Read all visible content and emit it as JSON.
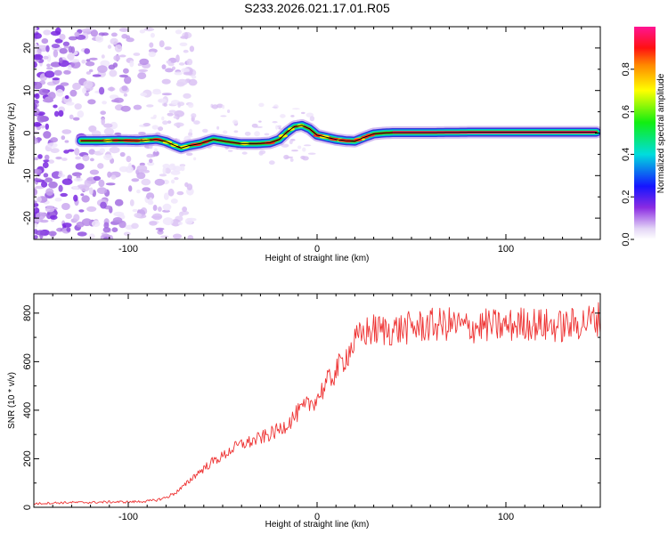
{
  "title": "S233.2026.021.17.01.R05",
  "chart_data": [
    {
      "type": "heatmap",
      "name": "spectrogram",
      "xlabel": "Height of straight line (km)",
      "ylabel": "Frequency (Hz)",
      "xlim": [
        -150,
        150
      ],
      "ylim": [
        -25,
        25
      ],
      "xticks": [
        -100,
        0,
        100
      ],
      "xtick_labels": [
        "-100",
        "0",
        "100"
      ],
      "yticks": [
        -20,
        -10,
        0,
        10,
        20
      ],
      "ytick_labels": [
        "-20",
        "-10",
        "0",
        "10",
        "20"
      ],
      "ridge_line": {
        "x": [
          -125,
          -115,
          -105,
          -95,
          -85,
          -80,
          -75,
          -72,
          -68,
          -62,
          -55,
          -48,
          -40,
          -32,
          -25,
          -20,
          -16,
          -12,
          -8,
          -4,
          0,
          5,
          10,
          15,
          20,
          25,
          30,
          35,
          40,
          60,
          80,
          100,
          120,
          140,
          148
        ],
        "y": [
          -1.8,
          -1.8,
          -1.7,
          -1.8,
          -1.5,
          -2.0,
          -3.0,
          -3.5,
          -3.0,
          -2.5,
          -1.5,
          -2.0,
          -2.5,
          -2.5,
          -2.3,
          -1.5,
          0.2,
          1.5,
          1.8,
          1.0,
          -0.5,
          -1.0,
          -1.5,
          -1.8,
          -1.9,
          -1.0,
          -0.2,
          0.0,
          0.1,
          0.1,
          0.2,
          0.2,
          0.2,
          0.2,
          0.2
        ]
      },
      "colorbar": {
        "label": "Normalized spectral amplitude",
        "range": [
          0.0,
          1.0
        ],
        "ticks": [
          0.0,
          0.2,
          0.4,
          0.6,
          0.8
        ],
        "tick_labels": [
          "0.0",
          "0.2",
          "0.4",
          "0.6",
          "0.8"
        ]
      }
    },
    {
      "type": "line",
      "name": "snr",
      "xlabel": "Height of straight line (km)",
      "ylabel": "SNR (10 * v/v)",
      "xlim": [
        -150,
        150
      ],
      "ylim": [
        0,
        880
      ],
      "xticks": [
        -100,
        0,
        100
      ],
      "xtick_labels": [
        "-100",
        "0",
        "100"
      ],
      "yticks": [
        0,
        200,
        400,
        600,
        800
      ],
      "ytick_labels": [
        "0",
        "200",
        "400",
        "600",
        "800"
      ],
      "series": [
        {
          "name": "SNR",
          "color": "#ee3333",
          "x": [
            -150,
            -140,
            -130,
            -120,
            -110,
            -100,
            -90,
            -85,
            -80,
            -75,
            -70,
            -65,
            -60,
            -55,
            -50,
            -45,
            -40,
            -35,
            -30,
            -25,
            -20,
            -15,
            -10,
            -5,
            0,
            5,
            10,
            15,
            20,
            25,
            30,
            40,
            50,
            60,
            70,
            80,
            90,
            100,
            110,
            120,
            130,
            140,
            150
          ],
          "y": [
            15,
            18,
            20,
            20,
            22,
            22,
            25,
            30,
            40,
            60,
            90,
            130,
            160,
            190,
            210,
            240,
            260,
            270,
            285,
            300,
            320,
            350,
            390,
            420,
            450,
            510,
            560,
            620,
            680,
            720,
            730,
            730,
            740,
            750,
            755,
            740,
            750,
            745,
            760,
            750,
            745,
            760,
            780
          ]
        }
      ]
    }
  ]
}
